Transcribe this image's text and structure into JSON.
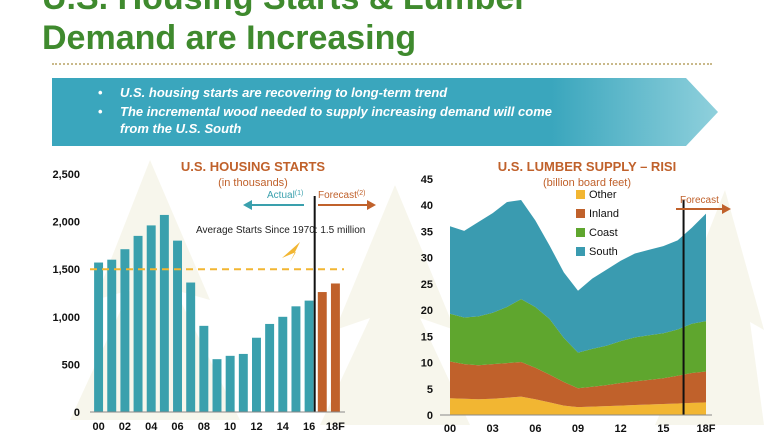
{
  "slide": {
    "title_line1": "U.S. Housing Starts & Lumber",
    "title_line2": "Demand are Increasing",
    "bullets": [
      "U.S. housing starts are recovering to long-term trend",
      "The incremental wood needed to supply increasing demand will come",
      "from the U.S. South"
    ],
    "bullet_symbol": "•",
    "colors": {
      "title": "#3f8a2e",
      "banner": "#3aa6bd",
      "bar_actual": "#3aa0ad",
      "bar_forecast": "#c0612b",
      "dashed": "#f2b632"
    }
  },
  "chart_data": [
    {
      "type": "bar",
      "title": "U.S. HOUSING STARTS",
      "subtitle": "(in thousands)",
      "xlabel": "",
      "ylabel": "",
      "ylim": [
        0,
        2500
      ],
      "yticks": [
        "0",
        "500",
        "1,000",
        "1,500",
        "2,000",
        "2,500"
      ],
      "ytick_values": [
        0,
        500,
        1000,
        1500,
        2000,
        2500
      ],
      "categories": [
        "00",
        "01",
        "02",
        "03",
        "04",
        "05",
        "06",
        "07",
        "08",
        "09",
        "10",
        "11",
        "12",
        "13",
        "14",
        "15",
        "16",
        "17",
        "18F"
      ],
      "xtick_labels": [
        "00",
        "02",
        "04",
        "06",
        "08",
        "10",
        "12",
        "14",
        "16",
        "18F"
      ],
      "values": [
        1570,
        1600,
        1710,
        1850,
        1960,
        2070,
        1800,
        1360,
        905,
        555,
        590,
        610,
        780,
        925,
        1000,
        1110,
        1170,
        1260,
        1350
      ],
      "forecast_from_index": 17,
      "actual_label": "Actual",
      "actual_sup": "(1)",
      "forecast_label": "Forecast",
      "forecast_sup": "(2)",
      "reference_line": {
        "value": 1500,
        "label": "Average Starts Since 1970: 1.5 million"
      }
    },
    {
      "type": "area",
      "stacked": true,
      "title": "U.S. LUMBER SUPPLY – RISI",
      "subtitle": "(billion board feet)",
      "xlabel": "",
      "ylabel": "",
      "ylim": [
        0,
        45
      ],
      "yticks": [
        "0",
        "5",
        "10",
        "15",
        "20",
        "25",
        "30",
        "35",
        "40",
        "45"
      ],
      "ytick_values": [
        0,
        5,
        10,
        15,
        20,
        25,
        30,
        35,
        40,
        45
      ],
      "x": [
        2000,
        2001,
        2002,
        2003,
        2004,
        2005,
        2006,
        2007,
        2008,
        2009,
        2010,
        2011,
        2012,
        2013,
        2014,
        2015,
        2016,
        2017,
        2018
      ],
      "xtick_labels": [
        "00",
        "03",
        "06",
        "09",
        "12",
        "15",
        "18F"
      ],
      "xtick_positions": [
        2000,
        2003,
        2006,
        2009,
        2012,
        2015,
        2018
      ],
      "forecast_from": 2016,
      "forecast_label": "Forecast",
      "legend_position": "upper-left",
      "series": [
        {
          "name": "Other",
          "color": "#f2b632",
          "values": [
            3.2,
            3.1,
            3.0,
            3.1,
            3.3,
            3.5,
            3.0,
            2.4,
            1.8,
            1.5,
            1.6,
            1.7,
            1.8,
            1.9,
            2.0,
            2.1,
            2.2,
            2.3,
            2.4
          ]
        },
        {
          "name": "Inland",
          "color": "#c0612b",
          "values": [
            7.0,
            6.6,
            6.5,
            6.6,
            6.6,
            6.6,
            6.0,
            5.3,
            4.5,
            3.6,
            3.8,
            4.0,
            4.3,
            4.5,
            4.7,
            4.9,
            5.3,
            5.7,
            5.9
          ]
        },
        {
          "name": "Coast",
          "color": "#5fa62e",
          "values": [
            9.1,
            8.9,
            9.3,
            9.8,
            10.7,
            12.0,
            11.6,
            10.6,
            8.4,
            6.8,
            7.2,
            7.5,
            8.0,
            8.4,
            8.5,
            8.6,
            8.8,
            9.4,
            9.6
          ]
        },
        {
          "name": "South",
          "color": "#3a9bb0",
          "values": [
            16.7,
            16.5,
            18.0,
            19.0,
            20.0,
            18.9,
            16.5,
            14.0,
            12.5,
            11.8,
            13.4,
            14.5,
            15.3,
            16.0,
            16.3,
            16.6,
            17.0,
            18.3,
            20.5
          ]
        }
      ]
    }
  ]
}
